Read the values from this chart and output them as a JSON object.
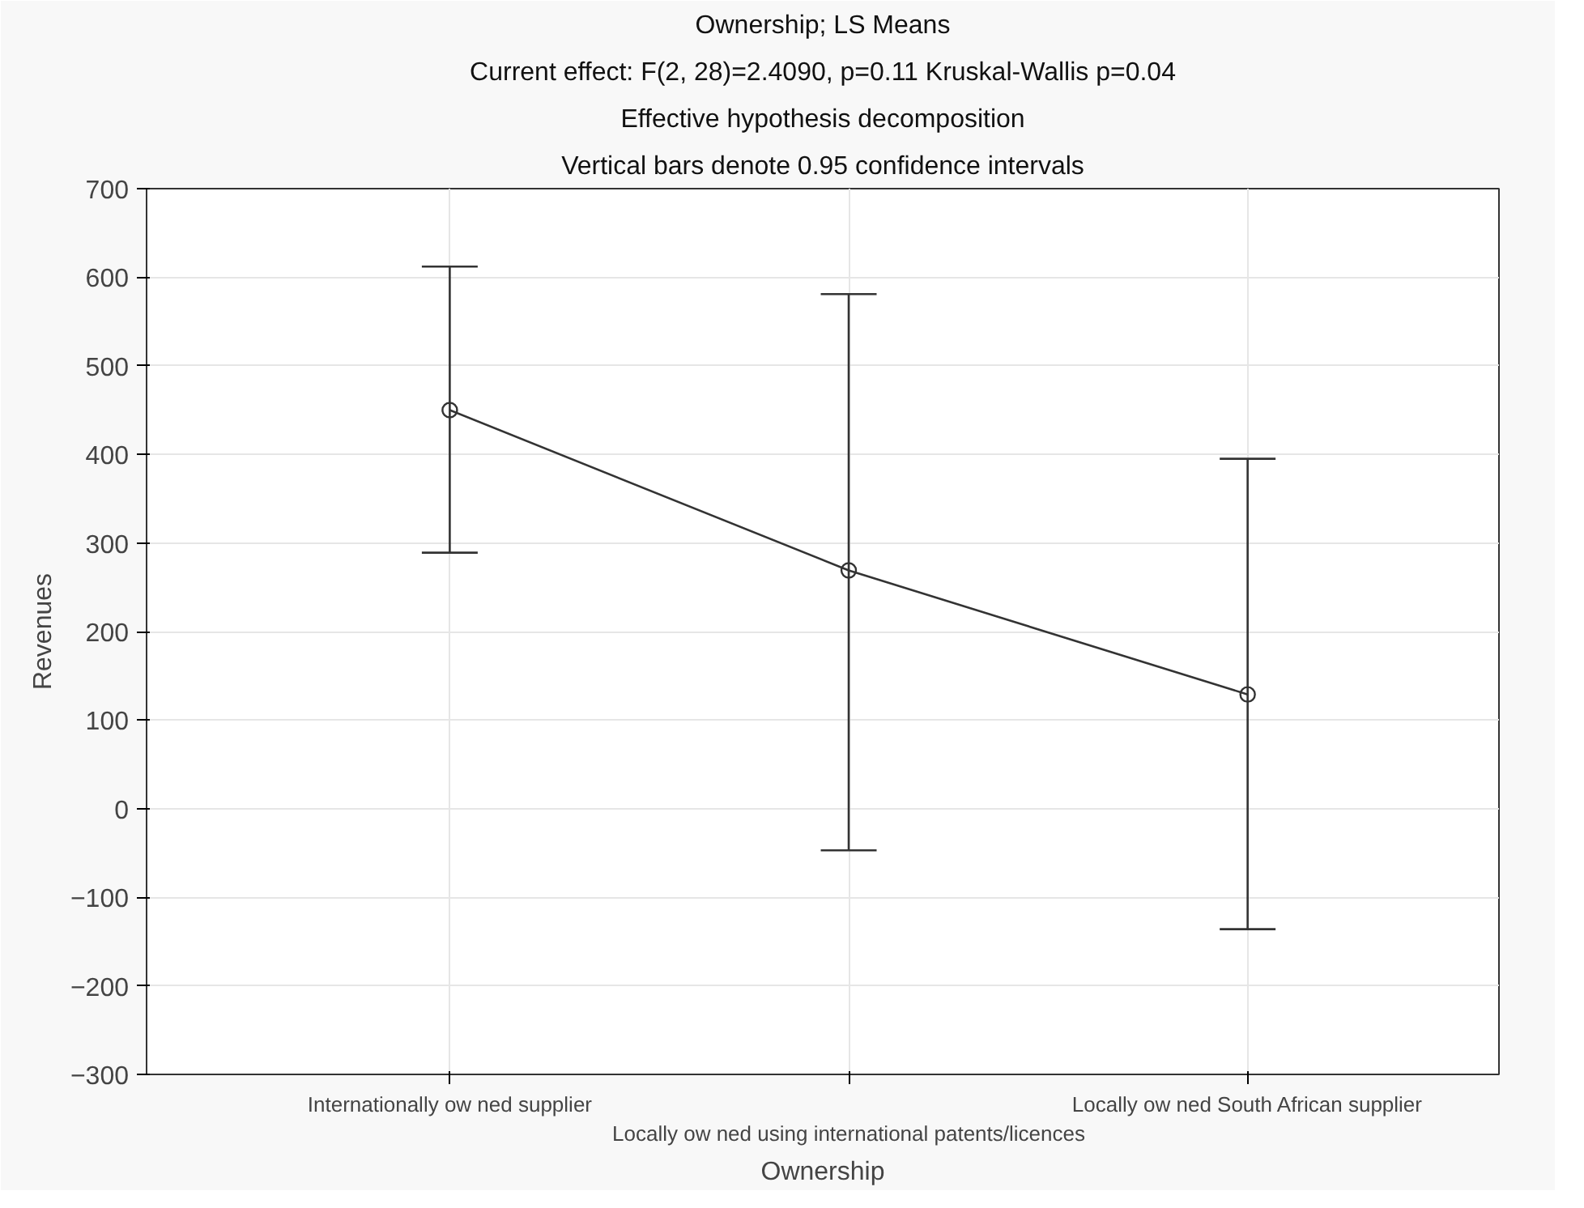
{
  "chart_data": {
    "type": "line",
    "title": "Ownership; LS Means",
    "subtitle": "Current effect: F(2, 28)=2.4090, p=0.11 Kruskal-Wallis p=0.04",
    "annotations": [
      "Effective hypothesis decomposition",
      "Vertical bars denote 0.95 confidence intervals"
    ],
    "xlabel": "Ownership",
    "ylabel": "Revenues",
    "categories": [
      "Internationally ow ned supplier",
      "Locally ow ned using international patents/licences",
      "Locally ow ned South African supplier"
    ],
    "series": [
      {
        "color": "#333333",
        "values": [
          450,
          269,
          129
        ],
        "errors": [
          [
            289,
            612
          ],
          [
            -47,
            581
          ],
          [
            -136,
            395
          ]
        ]
      }
    ],
    "ylim": [
      -300,
      700
    ],
    "yticks": [
      -300,
      -200,
      -100,
      0,
      100,
      200,
      300,
      400,
      500,
      600,
      700
    ],
    "grid": true,
    "marker": "circle",
    "line_style": "solid"
  }
}
